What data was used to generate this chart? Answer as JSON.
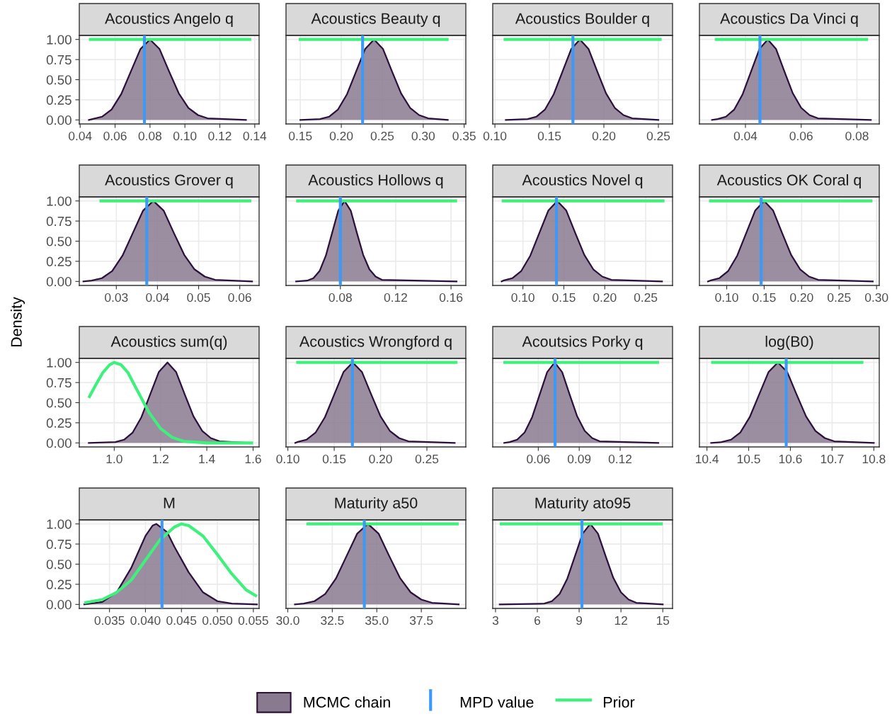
{
  "chart_data": [
    {
      "type": "area",
      "title": "Acoustics Angelo q",
      "xlim": [
        0.0395,
        0.1425
      ],
      "xticks": [
        0.04,
        0.06,
        0.08,
        {
          "value": 0.1,
          "label": "0.10"
        },
        {
          "value": 0.12,
          "label": "0.12"
        },
        0.14
      ],
      "ylim": [
        -0.05,
        1.05
      ],
      "yticks": [
        {
          "value": 0,
          "label": "0.00"
        },
        {
          "value": 0.25,
          "label": "0.25"
        },
        {
          "value": 0.5,
          "label": "0.50"
        },
        {
          "value": 0.75,
          "label": "0.75"
        },
        {
          "value": 1,
          "label": "1.00"
        }
      ],
      "grid": true,
      "legend": "bottom",
      "series": [
        {
          "name": "MCMC chain",
          "type": "area",
          "color": "#8a7a90",
          "x": [
            0.045,
            0.047,
            0.0525,
            0.058,
            0.0635,
            0.069,
            0.0745,
            0.08,
            0.0855,
            0.091,
            0.0965,
            0.102,
            0.1075,
            0.113,
            0.135
          ],
          "values": [
            0,
            0.01,
            0.04,
            0.13,
            0.32,
            0.6,
            0.88,
            1,
            0.88,
            0.6,
            0.33,
            0.15,
            0.06,
            0.02,
            0
          ]
        },
        {
          "name": "Prior",
          "type": "line",
          "color": "#3ef07c",
          "x": [
            0.045,
            0.138
          ],
          "values": [
            1,
            1
          ]
        }
      ],
      "ref_lines": [
        {
          "axis": "x",
          "value": 0.0768,
          "label": "MPD value",
          "color": "#3d99f5"
        }
      ]
    },
    {
      "type": "area",
      "title": "Acoustics Beauty q",
      "xlim": [
        0.1325,
        0.352
      ],
      "xticks": [
        0.15,
        {
          "value": 0.2,
          "label": "0.20"
        },
        0.25,
        {
          "value": 0.3,
          "label": "0.30"
        },
        0.35
      ],
      "ylim": [
        -0.05,
        1.05
      ],
      "tick_labels": "x",
      "grid": true,
      "series": [
        {
          "type": "area",
          "color": "#8a7a90",
          "x": [
            0.15,
            0.174,
            0.185,
            0.196,
            0.207,
            0.218,
            0.229,
            0.24,
            0.251,
            0.262,
            0.273,
            0.284,
            0.295,
            0.306,
            0.33
          ],
          "values": [
            0,
            0.01,
            0.04,
            0.13,
            0.32,
            0.6,
            0.88,
            1,
            0.88,
            0.6,
            0.33,
            0.15,
            0.06,
            0.02,
            0
          ]
        },
        {
          "type": "line",
          "color": "#3ef07c",
          "x": [
            0.148,
            0.331
          ],
          "values": [
            1,
            1
          ]
        }
      ],
      "ref_lines": [
        {
          "axis": "x",
          "value": 0.226,
          "color": "#3d99f5"
        }
      ]
    },
    {
      "type": "area",
      "title": "Acoustics Boulder q",
      "xlim": [
        0.098,
        0.263
      ],
      "xticks": [
        {
          "value": 0.1,
          "label": "0.10"
        },
        0.15,
        {
          "value": 0.2,
          "label": "0.20"
        },
        0.25
      ],
      "ylim": [
        -0.05,
        1.05
      ],
      "tick_labels": "x",
      "grid": true,
      "series": [
        {
          "type": "area",
          "color": "#8a7a90",
          "x": [
            0.11,
            0.13,
            0.138,
            0.146,
            0.154,
            0.162,
            0.17,
            0.178,
            0.186,
            0.194,
            0.202,
            0.21,
            0.218,
            0.226,
            0.25
          ],
          "values": [
            0,
            0.01,
            0.04,
            0.13,
            0.32,
            0.6,
            0.88,
            1,
            0.88,
            0.6,
            0.33,
            0.15,
            0.06,
            0.02,
            0
          ]
        },
        {
          "type": "line",
          "color": "#3ef07c",
          "x": [
            0.108,
            0.253
          ],
          "values": [
            1,
            1
          ]
        }
      ],
      "ref_lines": [
        {
          "axis": "x",
          "value": 0.1716,
          "color": "#3d99f5"
        }
      ]
    },
    {
      "type": "area",
      "title": "Acoustics Da Vinci q",
      "xlim": [
        0.0235,
        0.088
      ],
      "xticks": [
        0.04,
        0.06,
        0.08
      ],
      "ylim": [
        -0.05,
        1.05
      ],
      "tick_labels": "x",
      "grid": true,
      "series": [
        {
          "type": "area",
          "color": "#8a7a90",
          "x": [
            0.028,
            0.03,
            0.033,
            0.036,
            0.039,
            0.042,
            0.045,
            0.048,
            0.051,
            0.054,
            0.057,
            0.06,
            0.063,
            0.066,
            0.085
          ],
          "values": [
            0,
            0.01,
            0.04,
            0.13,
            0.32,
            0.6,
            0.88,
            1,
            0.88,
            0.6,
            0.33,
            0.15,
            0.06,
            0.02,
            0
          ]
        },
        {
          "type": "line",
          "color": "#3ef07c",
          "x": [
            0.029,
            0.084
          ],
          "values": [
            1,
            1
          ]
        }
      ],
      "ref_lines": [
        {
          "axis": "x",
          "value": 0.0452,
          "color": "#3d99f5"
        }
      ]
    },
    {
      "type": "area",
      "title": "Acoustics Grover q",
      "ylabel": "Density",
      "xlim": [
        0.021,
        0.0647
      ],
      "xticks": [
        0.03,
        0.04,
        0.05,
        0.06
      ],
      "ylim": [
        -0.05,
        1.05
      ],
      "yticks": [
        {
          "value": 0,
          "label": "0.00"
        },
        {
          "value": 0.25,
          "label": "0.25"
        },
        {
          "value": 0.5,
          "label": "0.50"
        },
        {
          "value": 0.75,
          "label": "0.75"
        },
        {
          "value": 1,
          "label": "1.00"
        }
      ],
      "grid": true,
      "series": [
        {
          "type": "area",
          "color": "#8a7a90",
          "x": [
            0.022,
            0.024,
            0.0265,
            0.029,
            0.0315,
            0.034,
            0.0365,
            0.039,
            0.0415,
            0.044,
            0.0465,
            0.049,
            0.0515,
            0.054,
            0.063
          ],
          "values": [
            0,
            0.01,
            0.04,
            0.13,
            0.32,
            0.6,
            0.88,
            1,
            0.88,
            0.6,
            0.33,
            0.15,
            0.06,
            0.02,
            0
          ]
        },
        {
          "type": "line",
          "color": "#3ef07c",
          "x": [
            0.0259,
            0.0628
          ],
          "values": [
            1,
            1
          ]
        }
      ],
      "ref_lines": [
        {
          "axis": "x",
          "value": 0.0374,
          "color": "#3d99f5"
        }
      ]
    },
    {
      "type": "area",
      "title": "Acoustics Hollows q",
      "xlim": [
        0.0407,
        0.1707
      ],
      "xticks": [
        0.08,
        0.12,
        0.16
      ],
      "ylim": [
        -0.05,
        1.05
      ],
      "tick_labels": "x",
      "grid": true,
      "series": [
        {
          "type": "area",
          "color": "#8a7a90",
          "x": [
            0.048,
            0.056,
            0.0605,
            0.065,
            0.0695,
            0.074,
            0.0785,
            0.083,
            0.0875,
            0.092,
            0.0965,
            0.101,
            0.1055,
            0.11,
            0.164
          ],
          "values": [
            0,
            0.01,
            0.04,
            0.13,
            0.32,
            0.6,
            0.88,
            1,
            0.88,
            0.6,
            0.33,
            0.15,
            0.06,
            0.02,
            0
          ]
        },
        {
          "type": "line",
          "color": "#3ef07c",
          "x": [
            0.048,
            0.1644
          ],
          "values": [
            1,
            1
          ]
        }
      ],
      "ref_lines": [
        {
          "axis": "x",
          "value": 0.08,
          "color": "#3d99f5"
        }
      ]
    },
    {
      "type": "area",
      "title": "Acoustics Novel q",
      "xlim": [
        0.0631,
        0.2828
      ],
      "xticks": [
        {
          "value": 0.1,
          "label": "0.10"
        },
        0.15,
        {
          "value": 0.2,
          "label": "0.20"
        },
        0.25
      ],
      "ylim": [
        -0.05,
        1.05
      ],
      "tick_labels": "x",
      "grid": true,
      "series": [
        {
          "type": "area",
          "color": "#8a7a90",
          "x": [
            0.074,
            0.076,
            0.087,
            0.098,
            0.109,
            0.12,
            0.131,
            0.142,
            0.153,
            0.164,
            0.175,
            0.186,
            0.197,
            0.208,
            0.27
          ],
          "values": [
            0,
            0.01,
            0.04,
            0.13,
            0.32,
            0.6,
            0.88,
            1,
            0.88,
            0.6,
            0.33,
            0.15,
            0.06,
            0.02,
            0
          ]
        },
        {
          "type": "line",
          "color": "#3ef07c",
          "x": [
            0.074,
            0.273
          ],
          "values": [
            1,
            1
          ]
        }
      ],
      "ref_lines": [
        {
          "axis": "x",
          "value": 0.141,
          "color": "#3d99f5"
        }
      ]
    },
    {
      "type": "area",
      "title": "Acoustics OK Coral q",
      "xlim": [
        0.0636,
        0.3036
      ],
      "xticks": [
        {
          "value": 0.1,
          "label": "0.10"
        },
        0.15,
        {
          "value": 0.2,
          "label": "0.20"
        },
        0.25,
        {
          "value": 0.3,
          "label": "0.30"
        }
      ],
      "ylim": [
        -0.05,
        1.05
      ],
      "tick_labels": "x",
      "grid": true,
      "series": [
        {
          "type": "area",
          "color": "#8a7a90",
          "x": [
            0.075,
            0.078,
            0.09,
            0.102,
            0.114,
            0.126,
            0.138,
            0.15,
            0.162,
            0.174,
            0.186,
            0.198,
            0.21,
            0.222,
            0.295
          ],
          "values": [
            0,
            0.01,
            0.04,
            0.13,
            0.32,
            0.6,
            0.88,
            1,
            0.88,
            0.6,
            0.33,
            0.15,
            0.06,
            0.02,
            0
          ]
        },
        {
          "type": "line",
          "color": "#3ef07c",
          "x": [
            0.0764,
            0.2945
          ],
          "values": [
            1,
            1
          ]
        }
      ],
      "ref_lines": [
        {
          "axis": "x",
          "value": 0.146,
          "color": "#3d99f5"
        }
      ]
    },
    {
      "type": "area",
      "title": "Acoustics sum(q)",
      "xlim": [
        0.849,
        1.626
      ],
      "xticks": [
        {
          "value": 1.0,
          "label": "1.0"
        },
        1.2,
        1.4,
        1.6
      ],
      "ylim": [
        -0.05,
        1.05
      ],
      "yticks": [
        {
          "value": 0,
          "label": "0.00"
        },
        {
          "value": 0.25,
          "label": "0.25"
        },
        {
          "value": 0.5,
          "label": "0.50"
        },
        {
          "value": 0.75,
          "label": "0.75"
        },
        {
          "value": 1,
          "label": "1.00"
        }
      ],
      "grid": true,
      "series": [
        {
          "type": "area",
          "color": "#8a7a90",
          "x": [
            0.89,
            1.005,
            1.0425,
            1.08,
            1.1175,
            1.155,
            1.1925,
            1.23,
            1.2675,
            1.305,
            1.3425,
            1.38,
            1.4175,
            1.455,
            1.58
          ],
          "values": [
            0,
            0.01,
            0.04,
            0.13,
            0.32,
            0.6,
            0.88,
            1,
            0.88,
            0.6,
            0.33,
            0.15,
            0.06,
            0.02,
            0
          ]
        },
        {
          "type": "line",
          "color": "#3ef07c",
          "x": [
            0.89,
            0.92,
            0.95,
            0.98,
            1.0,
            1.03,
            1.06,
            1.1,
            1.15,
            1.2,
            1.25,
            1.3,
            1.35,
            1.4,
            1.6
          ],
          "values": [
            0.56,
            0.72,
            0.87,
            0.97,
            1.0,
            0.97,
            0.87,
            0.65,
            0.38,
            0.18,
            0.07,
            0.02,
            0.01,
            0,
            0
          ]
        }
      ]
    },
    {
      "type": "area",
      "title": "Acoustics Wrongford q",
      "xlim": [
        0.098,
        0.292
      ],
      "xticks": [
        {
          "value": 0.1,
          "label": "0.10"
        },
        0.15,
        {
          "value": 0.2,
          "label": "0.20"
        },
        0.25
      ],
      "ylim": [
        -0.05,
        1.05
      ],
      "tick_labels": "x",
      "grid": true,
      "series": [
        {
          "type": "area",
          "color": "#8a7a90",
          "x": [
            0.108,
            0.11,
            0.12,
            0.13,
            0.14,
            0.15,
            0.16,
            0.17,
            0.18,
            0.19,
            0.2,
            0.21,
            0.22,
            0.23,
            0.28
          ],
          "values": [
            0,
            0.01,
            0.04,
            0.13,
            0.32,
            0.6,
            0.88,
            1,
            0.88,
            0.6,
            0.33,
            0.15,
            0.06,
            0.02,
            0
          ]
        },
        {
          "type": "line",
          "color": "#3ef07c",
          "x": [
            0.109,
            0.283
          ],
          "values": [
            1,
            1
          ]
        }
      ],
      "ref_lines": [
        {
          "axis": "x",
          "value": 0.1696,
          "color": "#3d99f5"
        }
      ]
    },
    {
      "type": "area",
      "title": "Acoutsics Porky q",
      "xlim": [
        0.0266,
        0.1584
      ],
      "xticks": [
        0.06,
        0.09,
        0.12
      ],
      "ylim": [
        -0.05,
        1.05
      ],
      "tick_labels": "x",
      "grid": true,
      "series": [
        {
          "type": "area",
          "color": "#8a7a90",
          "x": [
            0.035,
            0.039,
            0.0445,
            0.05,
            0.0555,
            0.061,
            0.0665,
            0.072,
            0.0775,
            0.083,
            0.0885,
            0.094,
            0.0995,
            0.105,
            0.148
          ],
          "values": [
            0,
            0.01,
            0.04,
            0.13,
            0.32,
            0.6,
            0.88,
            1,
            0.88,
            0.6,
            0.33,
            0.15,
            0.06,
            0.02,
            0
          ]
        },
        {
          "type": "line",
          "color": "#3ef07c",
          "x": [
            0.0344,
            0.1485
          ],
          "values": [
            1,
            1
          ]
        }
      ],
      "ref_lines": [
        {
          "axis": "x",
          "value": 0.0723,
          "color": "#3d99f5"
        }
      ]
    },
    {
      "type": "area",
      "title": "log(B0)",
      "xlim": [
        10.382,
        10.813
      ],
      "xticks": [
        10.4,
        10.5,
        10.6,
        10.7,
        10.8
      ],
      "ylim": [
        -0.05,
        1.05
      ],
      "tick_labels": "x",
      "grid": true,
      "series": [
        {
          "type": "area",
          "color": "#8a7a90",
          "x": [
            10.41,
            10.435,
            10.4575,
            10.48,
            10.5025,
            10.525,
            10.5475,
            10.57,
            10.5925,
            10.615,
            10.6375,
            10.66,
            10.6825,
            10.705,
            10.8
          ],
          "values": [
            0,
            0.01,
            0.04,
            0.13,
            0.32,
            0.6,
            0.88,
            1,
            0.88,
            0.6,
            0.33,
            0.15,
            0.06,
            0.02,
            0
          ]
        },
        {
          "type": "line",
          "color": "#3ef07c",
          "x": [
            10.41,
            10.775
          ],
          "values": [
            1,
            1
          ]
        }
      ],
      "ref_lines": [
        {
          "axis": "x",
          "value": 10.59,
          "color": "#3d99f5"
        }
      ]
    },
    {
      "type": "area",
      "title": "M",
      "xlim": [
        0.0308,
        0.0558
      ],
      "xticks": [
        0.035,
        {
          "value": 0.04,
          "label": "0.040"
        },
        0.045,
        {
          "value": 0.05,
          "label": "0.050"
        },
        0.055
      ],
      "ylim": [
        -0.05,
        1.05
      ],
      "yticks": [
        {
          "value": 0,
          "label": "0.00"
        },
        {
          "value": 0.25,
          "label": "0.25"
        },
        {
          "value": 0.5,
          "label": "0.50"
        },
        {
          "value": 0.75,
          "label": "0.75"
        },
        {
          "value": 1,
          "label": "1.00"
        }
      ],
      "grid": true,
      "series": [
        {
          "type": "area",
          "color": "#8a7a90",
          "x": [
            0.0315,
            0.034,
            0.036,
            0.038,
            0.04,
            0.041,
            0.0415,
            0.043,
            0.044,
            0.046,
            0.048,
            0.05,
            0.052,
            0.0555
          ],
          "values": [
            0,
            0.03,
            0.15,
            0.45,
            0.85,
            0.98,
            1.0,
            0.9,
            0.72,
            0.4,
            0.15,
            0.04,
            0.01,
            0
          ]
        },
        {
          "type": "line",
          "color": "#3ef07c",
          "x": [
            0.0315,
            0.034,
            0.036,
            0.038,
            0.04,
            0.042,
            0.044,
            0.045,
            0.046,
            0.048,
            0.05,
            0.052,
            0.054,
            0.0555
          ],
          "values": [
            0.02,
            0.06,
            0.15,
            0.3,
            0.55,
            0.8,
            0.96,
            1.0,
            0.98,
            0.85,
            0.62,
            0.38,
            0.18,
            0.1
          ]
        }
      ],
      "ref_lines": [
        {
          "axis": "x",
          "value": 0.0423,
          "color": "#3d99f5"
        }
      ]
    },
    {
      "type": "area",
      "title": "Maturity a50",
      "xlim": [
        29.9,
        40.0
      ],
      "xticks": [
        {
          "value": 30,
          "label": "30.0"
        },
        32.5,
        {
          "value": 35,
          "label": "35.0"
        },
        37.5
      ],
      "ylim": [
        -0.05,
        1.05
      ],
      "tick_labels": "x",
      "grid": true,
      "series": [
        {
          "type": "area",
          "color": "#8a7a90",
          "x": [
            30.4,
            30.9,
            31.5,
            32.1,
            32.7,
            33.3,
            33.9,
            34.5,
            35.1,
            35.7,
            36.3,
            36.9,
            37.5,
            38.1,
            39.6
          ],
          "values": [
            0,
            0.01,
            0.04,
            0.13,
            0.32,
            0.6,
            0.88,
            1,
            0.88,
            0.6,
            0.33,
            0.15,
            0.06,
            0.02,
            0
          ]
        },
        {
          "type": "line",
          "color": "#3ef07c",
          "x": [
            31.05,
            39.6
          ],
          "values": [
            1,
            1
          ]
        }
      ],
      "ref_lines": [
        {
          "axis": "x",
          "value": 34.3,
          "color": "#3d99f5"
        }
      ]
    },
    {
      "type": "area",
      "title": "Maturity ato95",
      "xlim": [
        2.8,
        15.7
      ],
      "xticks": [
        3,
        6,
        9,
        12,
        15
      ],
      "ylim": [
        -0.05,
        1.05
      ],
      "tick_labels": "x",
      "grid": true,
      "series": [
        {
          "type": "area",
          "color": "#8a7a90",
          "x": [
            3.3,
            6.5,
            7.05,
            7.6,
            8.15,
            8.7,
            9.25,
            9.8,
            10.35,
            10.9,
            11.45,
            12.0,
            12.55,
            13.1,
            15
          ],
          "values": [
            0,
            0.01,
            0.04,
            0.13,
            0.32,
            0.6,
            0.88,
            1,
            0.88,
            0.6,
            0.33,
            0.15,
            0.06,
            0.02,
            0
          ]
        },
        {
          "type": "line",
          "color": "#3ef07c",
          "x": [
            3.3,
            15
          ],
          "values": [
            1,
            1
          ]
        }
      ],
      "ref_lines": [
        {
          "axis": "x",
          "value": 9.2,
          "color": "#3d99f5"
        }
      ]
    }
  ]
}
